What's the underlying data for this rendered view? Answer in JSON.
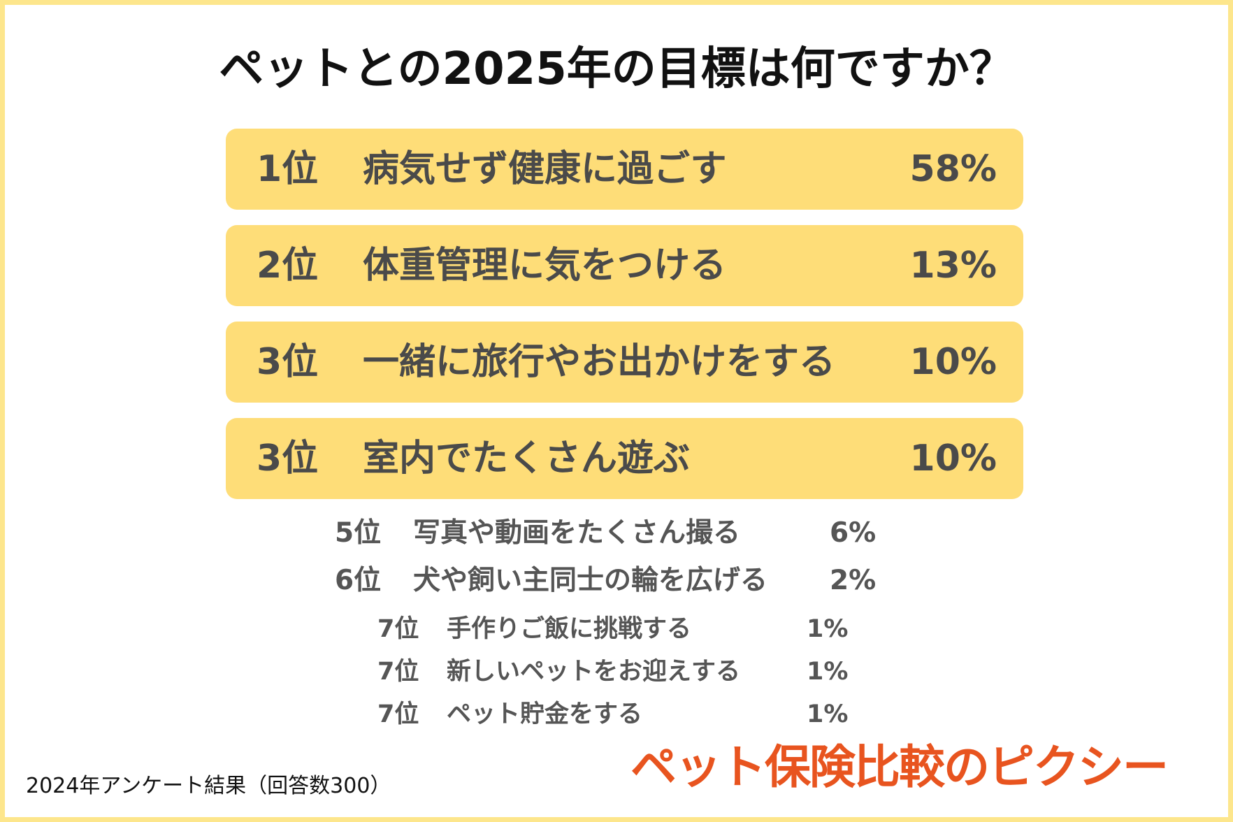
{
  "header": {
    "title": "ペットとの2025年の目標は何ですか？"
  },
  "top_ranks": [
    {
      "rank": "1位",
      "label": "病気せず健康に過ごす",
      "percent": "58%"
    },
    {
      "rank": "2位",
      "label": "体重管理に気をつける",
      "percent": "13%"
    },
    {
      "rank": "3位",
      "label": "一緒に旅行やお出かけをする",
      "percent": "10%"
    },
    {
      "rank": "3位",
      "label": "室内でたくさん遊ぶ",
      "percent": "10%"
    }
  ],
  "mid_ranks": [
    {
      "rank": "5位",
      "label": "写真や動画をたくさん撮る",
      "percent": "6%"
    },
    {
      "rank": "6位",
      "label": "犬や飼い主同士の輪を広げる",
      "percent": "2%"
    }
  ],
  "low_ranks": [
    {
      "rank": "7位",
      "label": "手作りご飯に挑戦する",
      "percent": "1%"
    },
    {
      "rank": "7位",
      "label": "新しいペットをお迎えする",
      "percent": "1%"
    },
    {
      "rank": "7位",
      "label": "ペット貯金をする",
      "percent": "1%"
    }
  ],
  "footer": {
    "note": "2024年アンケート結果（回答数300）",
    "logo": "ペット保険比較のピクシー"
  }
}
